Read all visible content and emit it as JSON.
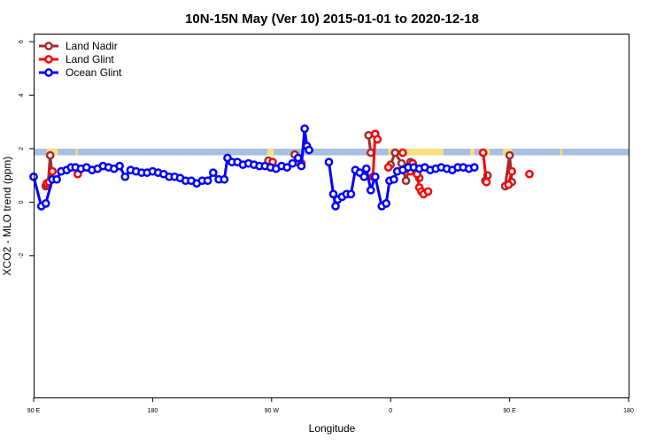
{
  "chart_data": {
    "type": "line",
    "title": "10N-15N May (Ver 10)   2015-01-01 to 2020-12-18",
    "xlabel": "Longitude",
    "ylabel": "XCO2 - MLO trend (ppm)",
    "xlim": [
      -90,
      180
    ],
    "ylim": [
      -7.3,
      6.3
    ],
    "x_ticks": [
      {
        "value": -90,
        "label": "90 E"
      },
      {
        "value": -36,
        "label": "180"
      },
      {
        "value": 18,
        "label": "90 W"
      },
      {
        "value": 72,
        "label": "0"
      },
      {
        "value": 126,
        "label": "90 E"
      },
      {
        "value": 180,
        "label": "180"
      }
    ],
    "y_ticks": [
      -2,
      0,
      2,
      4,
      6
    ],
    "grid": false,
    "legend_position": "top-left",
    "reference_band": {
      "y_range": [
        1.75,
        2.0
      ],
      "color": "#a7bfe0",
      "land_overlay_color": "#f9dd82",
      "land_x_ranges": [
        [
          -84,
          -79
        ],
        [
          -71,
          -70
        ],
        [
          16,
          19
        ],
        [
          71,
          96
        ],
        [
          114,
          117
        ],
        [
          123,
          127
        ],
        [
          108,
          110
        ],
        [
          149,
          150
        ]
      ]
    },
    "series": [
      {
        "name": "Land Nadir",
        "color": "#a52a2a",
        "segments": [
          [
            [
              -84.5,
              0.6
            ],
            [
              -83.5,
              0.62
            ],
            [
              -82.5,
              1.75
            ],
            [
              -81.5,
              0.85
            ]
          ],
          [
            [
              16.5,
              1.55
            ],
            [
              18,
              1.3
            ]
          ],
          [
            [
              28.5,
              1.78
            ],
            [
              29.5,
              1.5
            ]
          ],
          [
            [
              62,
              2.5
            ],
            [
              63,
              1.85
            ]
          ],
          [
            [
              72,
              1.4
            ],
            [
              74,
              1.85
            ],
            [
              77,
              1.45
            ],
            [
              79,
              0.8
            ],
            [
              81,
              1.5
            ],
            [
              82,
              1.45
            ],
            [
              84,
              1.25
            ],
            [
              85,
              0.9
            ]
          ],
          [
            [
              115,
              0.8
            ],
            [
              116,
              1.0
            ]
          ],
          [
            [
              124,
              0.6
            ],
            [
              126,
              1.75
            ],
            [
              127,
              0.75
            ]
          ]
        ]
      },
      {
        "name": "Land Glint",
        "color": "#ff0000",
        "segments": [
          [
            [
              -84,
              0.7
            ],
            [
              -83,
              0.75
            ],
            [
              -81.5,
              1.15
            ]
          ],
          [
            [
              -70,
              1.05
            ]
          ],
          [
            [
              18.5,
              1.5
            ]
          ],
          [
            [
              30,
              1.65
            ],
            [
              31.5,
              1.45
            ]
          ],
          [
            [
              64,
              0.95
            ],
            [
              65,
              2.55
            ],
            [
              66,
              2.35
            ]
          ],
          [
            [
              71,
              1.3
            ]
          ],
          [
            [
              77.5,
              1.85
            ]
          ],
          [
            [
              81,
              1.15
            ],
            [
              82,
              1.45
            ],
            [
              83,
              1.25
            ],
            [
              84,
              1.05
            ],
            [
              85,
              0.55
            ],
            [
              86,
              0.4
            ],
            [
              87,
              0.3
            ]
          ],
          [
            [
              89,
              0.4
            ]
          ],
          [
            [
              114,
              1.85
            ],
            [
              115.5,
              0.75
            ]
          ],
          [
            [
              125.5,
              0.65
            ],
            [
              127,
              1.15
            ]
          ],
          [
            [
              135,
              1.05
            ]
          ]
        ]
      },
      {
        "name": "Ocean Glint",
        "color": "#0000ff",
        "segments": [
          [
            [
              -90,
              0.95
            ],
            [
              -86.5,
              -0.15
            ],
            [
              -84.5,
              -0.05
            ],
            [
              -81.5,
              0.85
            ],
            [
              -79.5,
              0.85
            ],
            [
              -77.5,
              1.15
            ],
            [
              -75,
              1.2
            ],
            [
              -73,
              1.3
            ],
            [
              -71,
              1.3
            ],
            [
              -68.5,
              1.25
            ],
            [
              -66,
              1.3
            ],
            [
              -63.5,
              1.2
            ],
            [
              -61,
              1.25
            ],
            [
              -58.5,
              1.35
            ],
            [
              -56,
              1.3
            ],
            [
              -53.5,
              1.25
            ],
            [
              -51,
              1.35
            ],
            [
              -48.5,
              0.95
            ],
            [
              -46,
              1.2
            ],
            [
              -43.5,
              1.15
            ],
            [
              -41,
              1.1
            ],
            [
              -38.5,
              1.1
            ],
            [
              -36,
              1.15
            ],
            [
              -33.5,
              1.1
            ],
            [
              -31,
              1.05
            ],
            [
              -28.5,
              0.95
            ],
            [
              -26,
              0.95
            ],
            [
              -23.5,
              0.9
            ],
            [
              -21,
              0.8
            ],
            [
              -18.5,
              0.8
            ],
            [
              -16,
              0.7
            ],
            [
              -13.5,
              0.8
            ],
            [
              -11,
              0.8
            ],
            [
              -8.5,
              1.1
            ],
            [
              -6,
              0.85
            ],
            [
              -3.5,
              0.85
            ],
            [
              -2,
              1.65
            ],
            [
              0,
              1.5
            ],
            [
              2.5,
              1.5
            ],
            [
              5,
              1.4
            ],
            [
              7.5,
              1.45
            ],
            [
              10,
              1.4
            ],
            [
              12.5,
              1.35
            ],
            [
              15,
              1.35
            ],
            [
              17.5,
              1.3
            ],
            [
              20,
              1.25
            ],
            [
              22.5,
              1.35
            ],
            [
              25,
              1.3
            ],
            [
              27.5,
              1.45
            ],
            [
              30,
              1.65
            ],
            [
              31.5,
              1.35
            ],
            [
              33,
              2.75
            ],
            [
              34,
              2.1
            ],
            [
              35,
              1.95
            ]
          ],
          [
            [
              44,
              1.5
            ],
            [
              46,
              0.3
            ],
            [
              47,
              -0.15
            ],
            [
              48,
              0.1
            ],
            [
              50,
              0.2
            ],
            [
              52,
              0.3
            ],
            [
              54,
              0.3
            ],
            [
              56,
              1.2
            ],
            [
              58,
              1.1
            ],
            [
              60,
              0.95
            ],
            [
              61,
              1.25
            ],
            [
              63,
              0.45
            ],
            [
              65,
              0.95
            ],
            [
              68,
              -0.15
            ],
            [
              70,
              -0.05
            ],
            [
              71.5,
              0.8
            ],
            [
              73.5,
              0.85
            ],
            [
              75,
              1.15
            ],
            [
              77.5,
              1.2
            ],
            [
              80,
              1.3
            ],
            [
              82.5,
              1.3
            ],
            [
              85,
              1.25
            ],
            [
              87.5,
              1.3
            ],
            [
              90,
              1.2
            ],
            [
              92.5,
              1.25
            ],
            [
              95,
              1.3
            ],
            [
              97.5,
              1.25
            ],
            [
              100,
              1.2
            ],
            [
              102.5,
              1.3
            ],
            [
              105,
              1.3
            ],
            [
              107.5,
              1.25
            ],
            [
              110,
              1.3
            ]
          ]
        ]
      }
    ]
  }
}
